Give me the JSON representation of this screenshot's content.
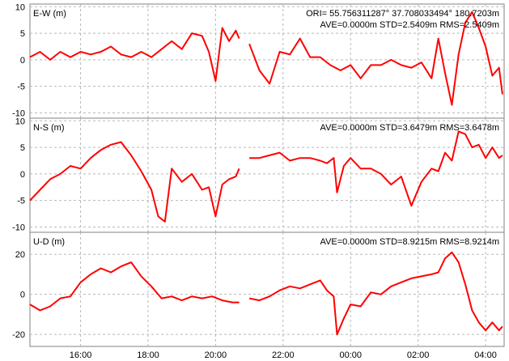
{
  "series_color": "#ff0000",
  "chart_data": {
    "type": "line",
    "x_unit": "hours",
    "xlim": [
      14.5,
      4.55
    ],
    "x_ticks": [
      16,
      18,
      20,
      22,
      0,
      2,
      4
    ],
    "x_tick_labels": [
      "16:00",
      "18:00",
      "20:00",
      "22:00",
      "00:00",
      "02:00",
      "04:00"
    ],
    "ori_text": "ORI= 55.756311287°   37.708033494° 180.7203m",
    "grid": true,
    "panels": [
      {
        "label": "E-W (m)",
        "stats": "AVE=0.0000m STD=2.5409m RMS=2.5409m",
        "ylim": [
          -11,
          10.5
        ],
        "y_ticks": [
          10,
          5,
          0,
          -5,
          -10
        ],
        "x": [
          14.5,
          14.8,
          15.1,
          15.4,
          15.7,
          16.0,
          16.3,
          16.6,
          16.9,
          17.2,
          17.5,
          17.8,
          18.1,
          18.4,
          18.7,
          19.0,
          19.3,
          19.6,
          19.8,
          20.0,
          20.2,
          20.4,
          20.6,
          20.7,
          null,
          21.0,
          21.3,
          21.6,
          21.9,
          22.2,
          22.5,
          22.8,
          23.1,
          23.4,
          23.7,
          24.0,
          24.3,
          24.6,
          24.9,
          25.2,
          25.5,
          25.8,
          26.1,
          26.4,
          26.6,
          26.8,
          27.0,
          27.2,
          27.4,
          27.6,
          27.8,
          28.0,
          28.2,
          28.4,
          28.5
        ],
        "y": [
          0.5,
          1.5,
          0.0,
          1.5,
          0.5,
          1.5,
          1.0,
          1.5,
          2.5,
          1.0,
          0.5,
          1.5,
          0.5,
          2.0,
          3.5,
          2.0,
          5.0,
          4.5,
          1.5,
          -4.0,
          6.0,
          3.5,
          5.5,
          4.0,
          null,
          3.0,
          -2.0,
          -4.5,
          1.5,
          1.0,
          4.0,
          0.5,
          0.5,
          -1.0,
          -2.0,
          -1.0,
          -3.5,
          -1.0,
          -1.0,
          0.0,
          -1.0,
          -1.5,
          -0.5,
          -3.5,
          4.0,
          -2.5,
          -8.5,
          1.0,
          7.0,
          9.0,
          6.0,
          2.5,
          -3.0,
          -1.5,
          -6.5
        ]
      },
      {
        "label": "N-S (m)",
        "stats": "AVE=0.0000m STD=3.6479m RMS=3.6478m",
        "ylim": [
          -11,
          10.5
        ],
        "y_ticks": [
          10,
          5,
          0,
          -5,
          -10
        ],
        "x": [
          14.5,
          14.8,
          15.1,
          15.4,
          15.7,
          16.0,
          16.3,
          16.6,
          16.9,
          17.2,
          17.5,
          17.8,
          18.1,
          18.3,
          18.5,
          18.7,
          19.0,
          19.3,
          19.6,
          19.8,
          20.0,
          20.2,
          20.4,
          20.6,
          20.7,
          null,
          21.0,
          21.3,
          21.6,
          21.9,
          22.2,
          22.5,
          22.8,
          23.1,
          23.3,
          23.5,
          23.6,
          23.8,
          24.0,
          24.3,
          24.6,
          24.9,
          25.2,
          25.5,
          25.8,
          26.1,
          26.4,
          26.6,
          26.8,
          27.0,
          27.2,
          27.4,
          27.6,
          27.8,
          28.0,
          28.2,
          28.4,
          28.5
        ],
        "y": [
          -5.0,
          -3.0,
          -1.0,
          0.0,
          1.5,
          1.0,
          3.0,
          4.5,
          5.5,
          6.0,
          3.5,
          0.5,
          -3.0,
          -8.0,
          -9.0,
          1.0,
          -1.5,
          0.0,
          -3.0,
          -2.5,
          -8.0,
          -2.0,
          -1.0,
          -0.5,
          1.0,
          null,
          3.0,
          3.0,
          3.5,
          4.0,
          2.5,
          3.0,
          3.0,
          2.5,
          2.0,
          3.0,
          -3.5,
          1.5,
          3.0,
          1.0,
          1.0,
          0.0,
          -2.0,
          -0.5,
          -6.0,
          -1.5,
          1.0,
          0.5,
          4.0,
          2.5,
          8.0,
          7.5,
          5.0,
          5.5,
          3.0,
          5.0,
          3.0,
          3.5
        ]
      },
      {
        "label": "U-D (m)",
        "stats": "AVE=0.0000m STD=8.9215m RMS=8.9214m",
        "ylim": [
          -26,
          31
        ],
        "y_ticks": [
          20,
          0,
          -20
        ],
        "x": [
          14.5,
          14.8,
          15.1,
          15.4,
          15.7,
          16.0,
          16.3,
          16.6,
          16.9,
          17.2,
          17.5,
          17.8,
          18.1,
          18.4,
          18.7,
          19.0,
          19.3,
          19.6,
          19.9,
          20.2,
          20.5,
          20.7,
          null,
          21.0,
          21.3,
          21.6,
          21.9,
          22.2,
          22.5,
          22.8,
          23.1,
          23.3,
          23.5,
          23.6,
          23.8,
          24.0,
          24.3,
          24.6,
          24.9,
          25.2,
          25.5,
          25.8,
          26.1,
          26.4,
          26.6,
          26.8,
          27.0,
          27.2,
          27.4,
          27.6,
          27.8,
          28.0,
          28.2,
          28.4,
          28.5
        ],
        "y": [
          -5.0,
          -8.0,
          -6.0,
          -2.0,
          -1.0,
          6.0,
          10.0,
          13.0,
          11.0,
          14.0,
          16.0,
          9.0,
          4.0,
          -2.0,
          -1.0,
          -3.0,
          -1.0,
          -2.0,
          -1.0,
          -3.0,
          -4.0,
          -4.0,
          null,
          -2.0,
          -3.0,
          -1.0,
          2.0,
          4.0,
          3.0,
          5.0,
          7.0,
          2.0,
          -1.0,
          -20.0,
          -12.0,
          -5.0,
          -6.0,
          1.0,
          0.0,
          4.0,
          6.0,
          8.0,
          9.0,
          10.0,
          11.0,
          18.0,
          21.0,
          16.0,
          5.0,
          -8.0,
          -14.0,
          -18.0,
          -14.0,
          -18.0,
          -16.0
        ]
      }
    ]
  }
}
